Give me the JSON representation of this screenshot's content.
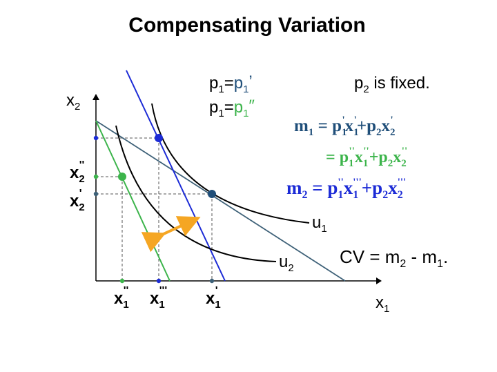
{
  "title": "Compensating Variation",
  "axes": {
    "y_label": {
      "base": "x",
      "sub": "2"
    },
    "x_label": {
      "base": "x",
      "sub": "1"
    }
  },
  "price_notes": [
    {
      "lhs": "p",
      "lhs_sub": "1",
      "eq": "=",
      "rhs": "p",
      "rhs_sub": "1",
      "rhs_prime": "’",
      "color": "#1f4e79"
    },
    {
      "lhs": "p",
      "lhs_sub": "1",
      "eq": "=",
      "rhs": "p",
      "rhs_sub": "1",
      "rhs_prime": "″",
      "color": "#3cb44b"
    }
  ],
  "p2_note": {
    "base": "p",
    "sub": "2",
    "text": " is fixed."
  },
  "equations": {
    "m1": {
      "lhs": "m",
      "lhs_sub": "1",
      "color": "#1f4e79",
      "terms": [
        {
          "b": "p",
          "s": "1",
          "p": "'"
        },
        {
          "b": "x",
          "s": "1",
          "p": "'"
        },
        {
          "op": "+"
        },
        {
          "b": "p",
          "s": "2",
          "p": ""
        },
        {
          "b": "x",
          "s": "2",
          "p": "'"
        }
      ]
    },
    "m1b": {
      "color": "#3cb44b",
      "terms": [
        {
          "b": "p",
          "s": "1",
          "p": "''"
        },
        {
          "b": "x",
          "s": "1",
          "p": "''"
        },
        {
          "op": "+"
        },
        {
          "b": "p",
          "s": "2",
          "p": ""
        },
        {
          "b": "x",
          "s": "2",
          "p": "''"
        }
      ]
    },
    "m2": {
      "lhs": "m",
      "lhs_sub": "2",
      "color": "#1c2bd6",
      "terms": [
        {
          "b": "p",
          "s": "1",
          "p": "''"
        },
        {
          "b": "x",
          "s": "1",
          "p": "'''"
        },
        {
          "op": "+"
        },
        {
          "b": "p",
          "s": "2",
          "p": ""
        },
        {
          "b": "x",
          "s": "2",
          "p": "'''"
        }
      ]
    }
  },
  "cv": {
    "text1": "CV = m",
    "sub1": "2",
    "text2": " - m",
    "sub2": "1",
    "end": "."
  },
  "curves": {
    "u1": {
      "base": "u",
      "sub": "1"
    },
    "u2": {
      "base": "u",
      "sub": "2"
    }
  },
  "x_ticks": [
    {
      "base": "x",
      "sub": "1",
      "prime": "''"
    },
    {
      "base": "x",
      "sub": "1",
      "prime": "'''"
    },
    {
      "base": "x",
      "sub": "1",
      "prime": "'"
    }
  ],
  "y_ticks": [
    {
      "base": "x",
      "sub": "2",
      "prime": "''"
    },
    {
      "base": "x",
      "sub": "2",
      "prime": "'"
    }
  ],
  "colors": {
    "dark_blue": "#1f4e79",
    "green": "#3cb44b",
    "blue": "#1c2bd6",
    "orange": "#f5a623",
    "black": "#000000"
  }
}
